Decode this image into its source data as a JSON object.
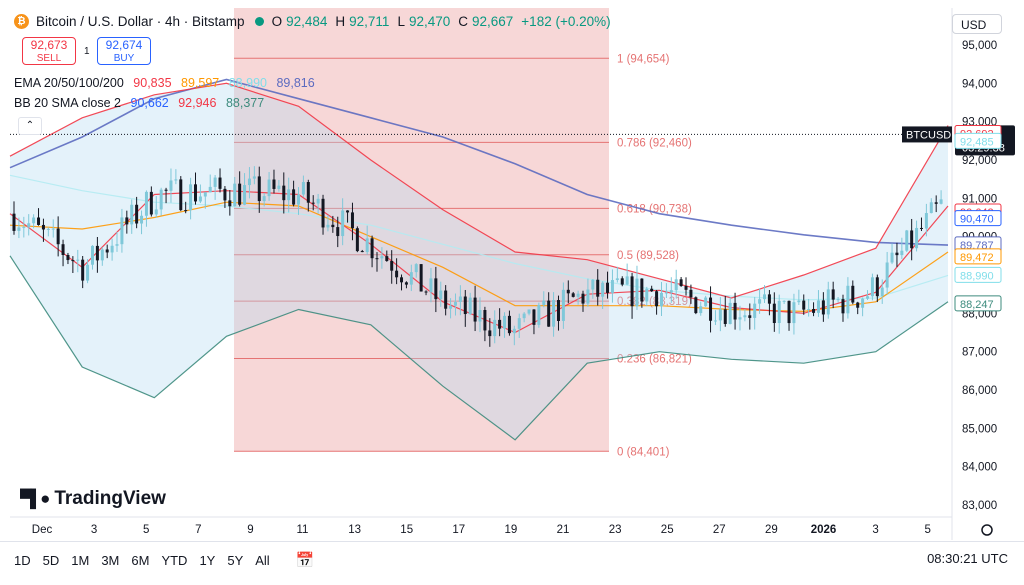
{
  "header": {
    "symbol_title": "Bitcoin / U.S. Dollar · 4h · Bitstamp",
    "ohlc": [
      {
        "k": "O",
        "v": "92,484"
      },
      {
        "k": "H",
        "v": "92,711"
      },
      {
        "k": "L",
        "v": "92,470"
      },
      {
        "k": "C",
        "v": "92,667"
      }
    ],
    "change": "+182 (+0.20%)"
  },
  "trade": {
    "sell_price": "92,673",
    "sell_label": "SELL",
    "buy_price": "92,674",
    "buy_label": "BUY",
    "spread": "1"
  },
  "indicators": {
    "ema_label": "EMA 20/50/100/200",
    "ema_values": [
      "90,835",
      "89,597",
      "88,990",
      "89,816"
    ],
    "bb_label": "BB 20 SMA close 2",
    "bb_values": [
      "90,662",
      "92,946",
      "88,377"
    ]
  },
  "currency": "USD",
  "logo_text": "TradingView",
  "ranges": [
    "1D",
    "5D",
    "1M",
    "3M",
    "6M",
    "YTD",
    "1Y",
    "5Y",
    "All"
  ],
  "clock": "08:30:21 UTC",
  "colors": {
    "up": "#089981",
    "down": "#131722",
    "fib": "#e57373",
    "ema20": "#f23645",
    "ema50": "#ff9800",
    "ema100": "#b2ebf2",
    "ema200": "#5c6bc0",
    "bb_band": "#3d8b7d"
  },
  "chart_data": {
    "type": "candlestick",
    "price_axis": {
      "ticks": [
        "95,000",
        "94,000",
        "93,000",
        "92,000",
        "91,000",
        "90,000",
        "89,000",
        "88,000",
        "87,000",
        "86,000",
        "85,000",
        "84,000",
        "83,000"
      ],
      "ylim": [
        82700,
        95300
      ]
    },
    "time_axis": {
      "labels": [
        "Dec",
        "3",
        "5",
        "7",
        "9",
        "11",
        "13",
        "15",
        "17",
        "19",
        "21",
        "23",
        "25",
        "27",
        "29",
        "2026",
        "3",
        "5"
      ]
    },
    "fibonacci": {
      "levels": [
        {
          "label": "1 (94,654)",
          "price": 94654
        },
        {
          "label": "0.786 (92,460)",
          "price": 92460
        },
        {
          "label": "0.618 (90,738)",
          "price": 90738
        },
        {
          "label": "0.5 (89,528)",
          "price": 89528
        },
        {
          "label": "0.382 (88,319)",
          "price": 88319
        },
        {
          "label": "0.236 (86,821)",
          "price": 86821
        },
        {
          "label": "0 (84,401)",
          "price": 84401
        }
      ]
    },
    "last_price": {
      "label": "BTCUSD",
      "price": "92,667",
      "countdown": "03:29:38",
      "value": 92667
    },
    "price_tags": [
      {
        "text": "92,692",
        "value": 92692,
        "color": "#f23645"
      },
      {
        "text": "92,485",
        "value": 92485,
        "color": "#80deea"
      },
      {
        "text": "90,642",
        "value": 90642,
        "color": "#f23645"
      },
      {
        "text": "90,470",
        "value": 90470,
        "color": "#2962ff"
      },
      {
        "text": "89,787",
        "value": 89787,
        "color": "#5c6bc0"
      },
      {
        "text": "89,472",
        "value": 89472,
        "color": "#ff9800"
      },
      {
        "text": "88,990",
        "value": 88990,
        "color": "#80deea"
      },
      {
        "text": "88,247",
        "value": 88247,
        "color": "#3d8b7d"
      }
    ],
    "series": [
      {
        "name": "EMA 200",
        "values": [
          91800,
          92600,
          93600,
          94100,
          93600,
          93100,
          92600,
          91900,
          91100,
          90600,
          90300,
          90050,
          89850,
          89780
        ]
      },
      {
        "name": "EMA 100",
        "values": [
          91600,
          91200,
          90900,
          90800,
          90600,
          90300,
          89800,
          89300,
          88900,
          88600,
          88450,
          88350,
          88400,
          88990
        ]
      },
      {
        "name": "EMA 50",
        "values": [
          90300,
          90200,
          90500,
          90900,
          90800,
          90000,
          89200,
          88200,
          88200,
          88200,
          88100,
          88050,
          88300,
          89600
        ]
      },
      {
        "name": "EMA 20",
        "values": [
          90600,
          89200,
          91100,
          91200,
          91100,
          89800,
          88300,
          87500,
          88500,
          88600,
          88150,
          88000,
          88550,
          90800
        ]
      },
      {
        "name": "BB upper",
        "values": [
          92100,
          93100,
          93700,
          94000,
          93400,
          92000,
          90700,
          89600,
          89400,
          88900,
          88400,
          89000,
          89700,
          92900
        ]
      },
      {
        "name": "BB lower",
        "values": [
          89500,
          86600,
          85800,
          87400,
          88100,
          87700,
          86100,
          84700,
          86700,
          87000,
          86800,
          86700,
          87000,
          88300
        ]
      }
    ]
  }
}
